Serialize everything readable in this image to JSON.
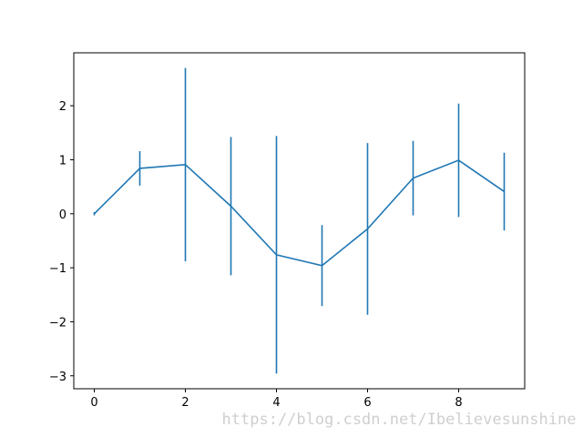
{
  "chart_data": {
    "type": "errorbar",
    "x": [
      0,
      1,
      2,
      3,
      4,
      5,
      6,
      7,
      8,
      9
    ],
    "series": [
      {
        "color": "#1f77b4",
        "values": [
          0,
          0.84,
          0.91,
          0.14,
          -0.76,
          -0.96,
          -0.28,
          0.66,
          0.99,
          0.41
        ],
        "errors": [
          0.03,
          0.32,
          1.79,
          1.28,
          2.2,
          0.75,
          1.59,
          0.69,
          1.05,
          0.72
        ]
      }
    ],
    "xlim": [
      -0.45,
      9.45
    ],
    "ylim": [
      -3.24,
      2.98
    ],
    "xticks": [
      0,
      2,
      4,
      6,
      8
    ],
    "yticks": [
      {
        "value": -3,
        "label": "−3"
      },
      {
        "value": -2,
        "label": "−2"
      },
      {
        "value": -1,
        "label": "−1"
      },
      0,
      1,
      2
    ],
    "grid": false,
    "watermark": "https://blog.csdn.net/Ibelievesunshine"
  }
}
